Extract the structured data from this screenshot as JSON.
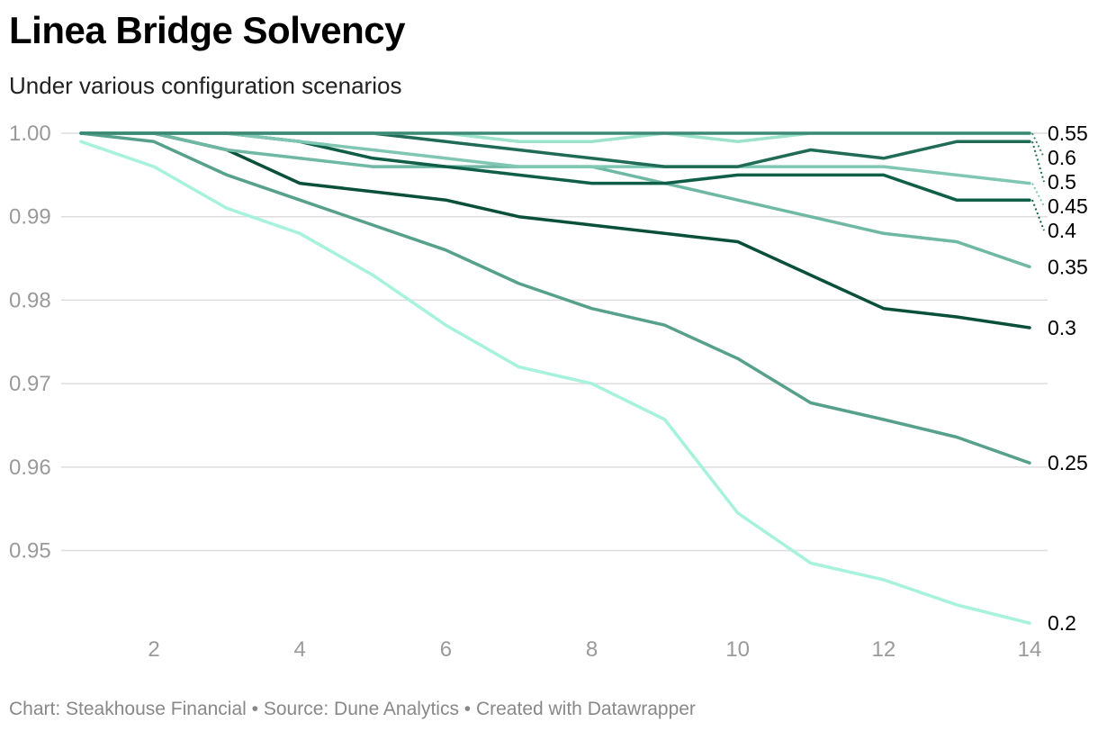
{
  "chart_data": {
    "type": "line",
    "title": "Linea Bridge Solvency",
    "subtitle": "Under various configuration scenarios",
    "xlabel": "",
    "ylabel": "",
    "xlim": [
      1,
      14
    ],
    "ylim": [
      0.941,
      1.0
    ],
    "x_ticks": [
      2,
      4,
      6,
      8,
      10,
      12,
      14
    ],
    "y_ticks": [
      {
        "value": 1.0,
        "label": "1.00"
      },
      {
        "value": 0.99,
        "label": "0.99"
      },
      {
        "value": 0.98,
        "label": "0.98"
      },
      {
        "value": 0.97,
        "label": "0.97"
      },
      {
        "value": 0.96,
        "label": "0.96"
      },
      {
        "value": 0.95,
        "label": "0.95"
      }
    ],
    "x": [
      1,
      2,
      3,
      4,
      5,
      6,
      7,
      8,
      9,
      10,
      11,
      12,
      13,
      14
    ],
    "series": [
      {
        "name": "0.2",
        "color": "#a6f2dc",
        "values": [
          0.999,
          0.996,
          0.991,
          0.988,
          0.983,
          0.977,
          0.972,
          0.97,
          0.9657,
          0.9545,
          0.9485,
          0.9465,
          0.9435,
          0.9413
        ]
      },
      {
        "name": "0.25",
        "color": "#56a08c",
        "values": [
          1.0,
          0.999,
          0.995,
          0.992,
          0.989,
          0.986,
          0.982,
          0.979,
          0.977,
          0.973,
          0.9677,
          0.9657,
          0.9636,
          0.9605
        ]
      },
      {
        "name": "0.3",
        "color": "#0a4f3a",
        "values": [
          1.0,
          1.0,
          0.998,
          0.994,
          0.993,
          0.992,
          0.99,
          0.989,
          0.988,
          0.987,
          0.983,
          0.979,
          0.978,
          0.9767
        ]
      },
      {
        "name": "0.35",
        "color": "#6fb8a3",
        "values": [
          1.0,
          1.0,
          0.998,
          0.997,
          0.996,
          0.996,
          0.996,
          0.996,
          0.994,
          0.992,
          0.99,
          0.988,
          0.987,
          0.984
        ]
      },
      {
        "name": "0.4",
        "color": "#0f5e47",
        "values": [
          1.0,
          1.0,
          1.0,
          0.999,
          0.997,
          0.996,
          0.995,
          0.994,
          0.994,
          0.995,
          0.995,
          0.995,
          0.992,
          0.992
        ]
      },
      {
        "name": "0.45",
        "color": "#7fc7b2",
        "values": [
          1.0,
          1.0,
          1.0,
          0.999,
          0.998,
          0.997,
          0.996,
          0.996,
          0.996,
          0.996,
          0.996,
          0.996,
          0.995,
          0.994
        ]
      },
      {
        "name": "0.5",
        "color": "#1f6b55",
        "values": [
          1.0,
          1.0,
          1.0,
          1.0,
          1.0,
          0.999,
          0.998,
          0.997,
          0.996,
          0.996,
          0.998,
          0.997,
          0.999,
          0.999
        ]
      },
      {
        "name": "0.55",
        "color": "#9de3cc",
        "values": [
          1.0,
          1.0,
          1.0,
          1.0,
          1.0,
          1.0,
          0.999,
          0.999,
          1.0,
          0.999,
          1.0,
          1.0,
          1.0,
          1.0
        ]
      },
      {
        "name": "0.6",
        "color": "#3d8a74",
        "values": [
          1.0,
          1.0,
          1.0,
          1.0,
          1.0,
          1.0,
          1.0,
          1.0,
          1.0,
          1.0,
          1.0,
          1.0,
          1.0,
          1.0
        ]
      }
    ],
    "legend": "direct labels at line ends (right)"
  },
  "footer": "Chart: Steakhouse Financial • Source: Dune Analytics • Created with Datawrapper"
}
